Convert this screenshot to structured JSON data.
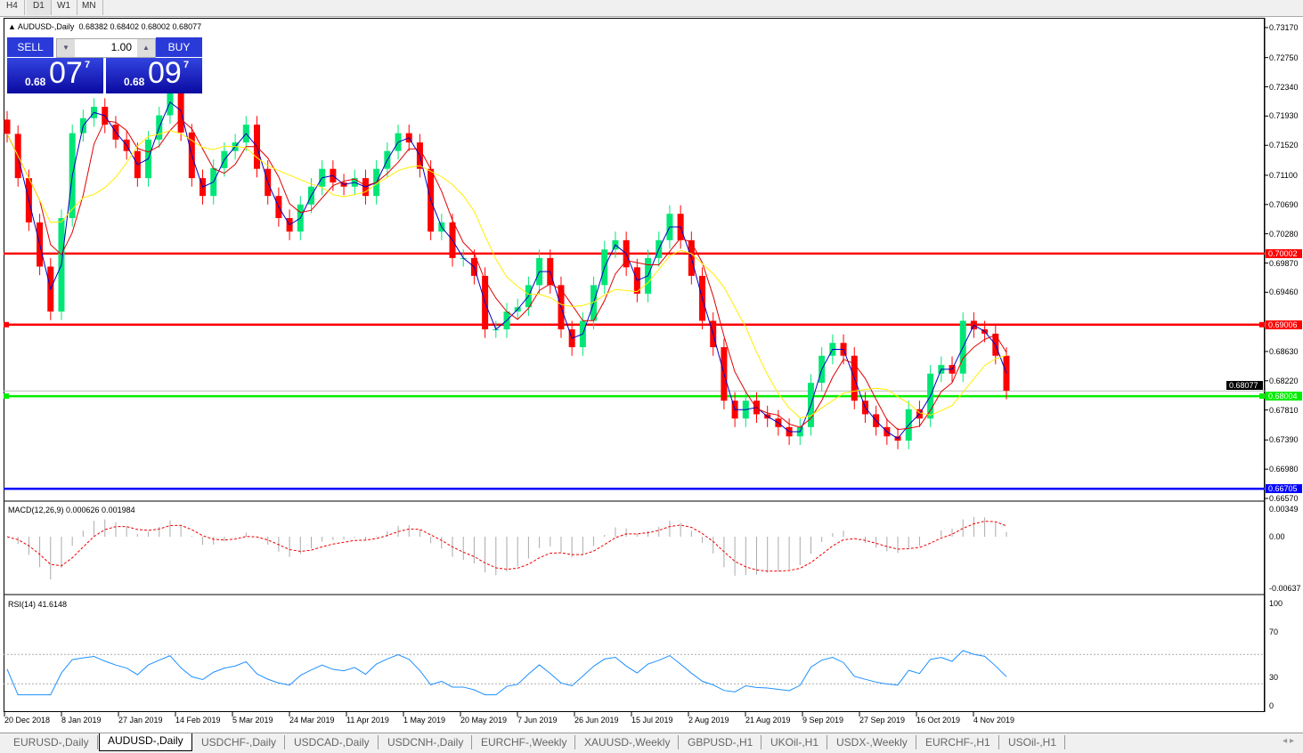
{
  "toolbar": {
    "timeframes": [
      "H4",
      "D1",
      "W1",
      "MN"
    ],
    "active": "D1"
  },
  "chart": {
    "title": "AUDUSD-,Daily",
    "ohlc": "0.68382 0.68402 0.68002 0.68077"
  },
  "trade": {
    "sell_label": "SELL",
    "buy_label": "BUY",
    "lot": "1.00",
    "sell_small": "0.68",
    "sell_big": "07",
    "sell_pip": "7",
    "buy_small": "0.68",
    "buy_big": "09",
    "buy_pip": "7"
  },
  "indicators": {
    "macd_label": "MACD(12,26,9) 0.000626 0.001984",
    "rsi_label": "RSI(14) 41.6148",
    "macd_ticks": [
      "0.00349",
      "0.00",
      "-0.00637"
    ],
    "rsi_ticks": [
      "100",
      "70",
      "30",
      "0"
    ]
  },
  "tabs": [
    "EURUSD-,Daily",
    "AUDUSD-,Daily",
    "USDCHF-,Daily",
    "USDCAD-,Daily",
    "USDCNH-,Daily",
    "EURCHF-,Weekly",
    "XAUUSD-,Weekly",
    "GBPUSD-,H1",
    "UKOil-,H1",
    "USDX-,Weekly",
    "EURCHF-,H1",
    "USOil-,H1"
  ],
  "active_tab": "AUDUSD-,Daily",
  "colors": {
    "bull": "#00e676",
    "bear": "#ff0000",
    "ma_fast": "#0000c0",
    "ma_mid": "#e00000",
    "ma_slow": "#ffee00",
    "rsi": "#1e90ff"
  },
  "chart_data": {
    "type": "candlestick",
    "symbol": "AUDUSD-",
    "timeframe": "Daily",
    "x_ticks": [
      "20 Dec 2018",
      "8 Jan 2019",
      "27 Jan 2019",
      "14 Feb 2019",
      "5 Mar 2019",
      "24 Mar 2019",
      "11 Apr 2019",
      "1 May 2019",
      "20 May 2019",
      "7 Jun 2019",
      "26 Jun 2019",
      "15 Jul 2019",
      "2 Aug 2019",
      "21 Aug 2019",
      "9 Sep 2019",
      "27 Sep 2019",
      "16 Oct 2019",
      "4 Nov 2019"
    ],
    "y_ticks": [
      0.7317,
      0.7275,
      0.7234,
      0.7193,
      0.7152,
      0.711,
      0.7069,
      0.7028,
      0.6987,
      0.6946,
      0.6863,
      0.6822,
      0.6781,
      0.6739,
      0.6698,
      0.6657
    ],
    "ylim": [
      0.6657,
      0.7317
    ],
    "closes": [
      0.7168,
      0.7106,
      0.7044,
      0.6982,
      0.6919,
      0.705,
      0.7169,
      0.719,
      0.7206,
      0.7181,
      0.716,
      0.7144,
      0.7106,
      0.716,
      0.7194,
      0.7231,
      0.717,
      0.7106,
      0.7081,
      0.712,
      0.7144,
      0.7156,
      0.7181,
      0.7119,
      0.7081,
      0.705,
      0.7031,
      0.7069,
      0.7094,
      0.7119,
      0.71,
      0.7094,
      0.7106,
      0.7081,
      0.7119,
      0.7144,
      0.7169,
      0.7156,
      0.7119,
      0.7031,
      0.7044,
      0.6994,
      0.6994,
      0.6969,
      0.6894,
      0.6894,
      0.6919,
      0.6925,
      0.6956,
      0.6994,
      0.6956,
      0.6894,
      0.6869,
      0.6906,
      0.6956,
      0.7006,
      0.7019,
      0.6981,
      0.6944,
      0.6994,
      0.7019,
      0.7056,
      0.7019,
      0.6969,
      0.6906,
      0.6869,
      0.6794,
      0.6769,
      0.6794,
      0.6775,
      0.6769,
      0.6757,
      0.6744,
      0.6757,
      0.6819,
      0.6857,
      0.6875,
      0.6857,
      0.6794,
      0.6775,
      0.6757,
      0.6744,
      0.6738,
      0.6782,
      0.6769,
      0.6832,
      0.6844,
      0.6832,
      0.6906,
      0.6894,
      0.6888,
      0.6857,
      0.6808
    ],
    "levels": [
      {
        "price": "0.70002",
        "color": "#ff0000"
      },
      {
        "price": "0.69006",
        "color": "#ff0000"
      },
      {
        "price": "0.68004",
        "color": "#00ee00"
      },
      {
        "price": "0.66705",
        "color": "#0000ff"
      }
    ],
    "current_price": "0.68077"
  }
}
